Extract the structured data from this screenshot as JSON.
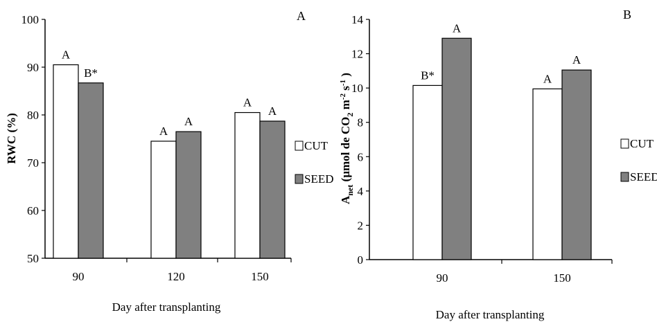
{
  "chart_data": [
    {
      "type": "bar",
      "panel": "A",
      "categories": [
        "90",
        "120",
        "150"
      ],
      "series": [
        {
          "name": "CUT",
          "values": [
            90.5,
            74.5,
            80.5
          ],
          "labels": [
            "A",
            "A",
            "A"
          ],
          "color": "#ffffff"
        },
        {
          "name": "SEED",
          "values": [
            86.7,
            76.5,
            78.7
          ],
          "labels": [
            "B*",
            "A",
            "A"
          ],
          "color": "#808080"
        }
      ],
      "ylabel": "RWC (%)",
      "xlabel": "Day after transplanting",
      "ylim": [
        50,
        100
      ],
      "yticks": [
        "50",
        "60",
        "70",
        "80",
        "90",
        "100"
      ],
      "legend": "right"
    },
    {
      "type": "bar",
      "panel": "B",
      "categories": [
        "90",
        "150"
      ],
      "series": [
        {
          "name": "CUT",
          "values": [
            10.15,
            9.95
          ],
          "labels": [
            "B*",
            "A"
          ],
          "color": "#ffffff"
        },
        {
          "name": "SEED",
          "values": [
            12.9,
            11.05
          ],
          "labels": [
            "A",
            "A"
          ],
          "color": "#808080"
        }
      ],
      "ylabel_main": "A",
      "ylabel_sub": "net",
      "ylabel_rest": "(µmol de CO",
      "ylabel_co2_sub": "2",
      "ylabel_units": "m",
      "ylabel_units_sup": "-2",
      "ylabel_s": "s",
      "ylabel_s_sup": "-1",
      "ylabel_close": ")",
      "xlabel": "Day after transplanting",
      "ylim": [
        0,
        14
      ],
      "yticks": [
        "0",
        "2",
        "4",
        "6",
        "8",
        "10",
        "12",
        "14"
      ],
      "legend": "right"
    }
  ]
}
